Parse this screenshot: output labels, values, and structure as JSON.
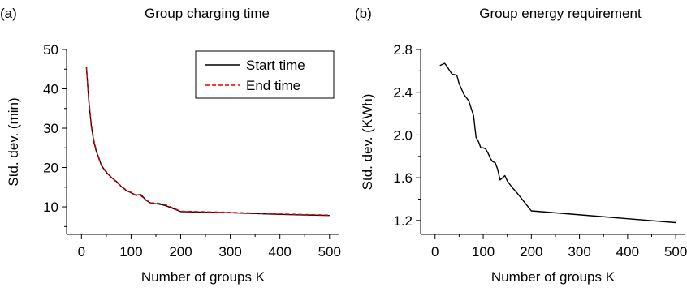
{
  "chart_data": [
    {
      "type": "line",
      "panel_label": "(a)",
      "title": "Group charging time",
      "xlabel": "Number of groups K",
      "ylabel": "Std. dev. (min)",
      "xlim": [
        -30,
        520
      ],
      "ylim": [
        3,
        50
      ],
      "xticks": [
        "0",
        "100",
        "200",
        "300",
        "400",
        "500"
      ],
      "yticks": [
        "10",
        "20",
        "30",
        "40",
        "50"
      ],
      "legend_position": "top-right",
      "series": [
        {
          "name": "Start time",
          "color": "#000000",
          "dash": "solid",
          "x": [
            10,
            15,
            20,
            25,
            30,
            35,
            40,
            50,
            60,
            70,
            80,
            90,
            100,
            110,
            120,
            130,
            140,
            150,
            160,
            170,
            200,
            300,
            400,
            500
          ],
          "y": [
            45.6,
            36.5,
            30.5,
            26.5,
            24,
            22.5,
            20.5,
            18.8,
            17.5,
            16.5,
            15.2,
            14.2,
            13.6,
            13.0,
            13.1,
            11.7,
            10.9,
            10.8,
            10.6,
            10.3,
            8.8,
            8.5,
            8.1,
            7.8
          ]
        },
        {
          "name": "End time",
          "color": "#e60000",
          "dash": "dashed",
          "x": [
            10,
            15,
            20,
            25,
            30,
            35,
            40,
            50,
            60,
            70,
            80,
            90,
            100,
            110,
            120,
            130,
            140,
            150,
            160,
            170,
            200,
            300,
            400,
            500
          ],
          "y": [
            45.4,
            37,
            31,
            27,
            24.3,
            22.2,
            20.6,
            19.0,
            17.6,
            16.3,
            15.3,
            14.3,
            13.7,
            12.9,
            12.8,
            11.8,
            11.0,
            11.0,
            10.8,
            10.5,
            8.9,
            8.6,
            8.2,
            7.9
          ]
        }
      ]
    },
    {
      "type": "line",
      "panel_label": "(b)",
      "title": "Group energy requirement",
      "xlabel": "Number of groups K",
      "ylabel": "Std. dev. (KWh)",
      "xlim": [
        -30,
        520
      ],
      "ylim": [
        1.07,
        2.8
      ],
      "xticks": [
        "0",
        "100",
        "200",
        "300",
        "400",
        "500"
      ],
      "yticks": [
        "1.2",
        "1.6",
        "2.0",
        "2.4",
        "2.8"
      ],
      "series": [
        {
          "color": "#000000",
          "dash": "solid",
          "x": [
            10,
            20,
            25,
            35,
            45,
            50,
            60,
            70,
            75,
            80,
            85,
            90,
            95,
            100,
            105,
            110,
            115,
            120,
            125,
            130,
            135,
            140,
            145,
            150,
            160,
            170,
            200,
            500
          ],
          "y": [
            2.65,
            2.67,
            2.64,
            2.57,
            2.56,
            2.48,
            2.38,
            2.32,
            2.25,
            2.18,
            1.98,
            1.94,
            1.88,
            1.88,
            1.87,
            1.83,
            1.78,
            1.75,
            1.74,
            1.68,
            1.58,
            1.6,
            1.62,
            1.57,
            1.51,
            1.46,
            1.29,
            1.18
          ]
        }
      ]
    }
  ]
}
